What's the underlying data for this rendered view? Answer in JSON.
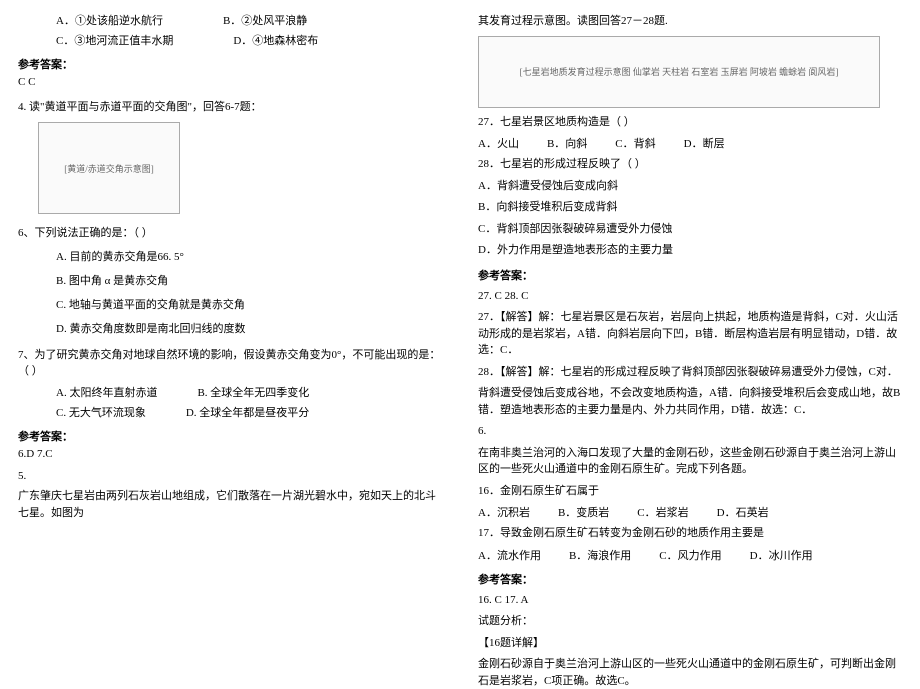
{
  "left": {
    "opts1": {
      "a": "A．①处该船逆水航行",
      "b": "B．②处风平浪静"
    },
    "opts2": {
      "c": "C．③地河流正值丰水期",
      "d": "D．④地森林密布"
    },
    "ans_head": "参考答案：",
    "ans_val": "C  C",
    "q4": "4. 读\"黄道平面与赤道平面的交角图\"，回答6-7题：",
    "img1_label": "[黄道/赤道交角示意图]",
    "q6": "6、下列说法正确的是：（    ）",
    "q6a": "A. 目前的黄赤交角是66. 5°",
    "q6b": "B. 图中角 α 是黄赤交角",
    "q6c": "C. 地轴与黄道平面的交角就是黄赤交角",
    "q6d": "D. 黄赤交角度数即是南北回归线的度数",
    "q7": "7、为了研究黄赤交角对地球自然环境的影响，假设黄赤交角变为0°，不可能出现的是：（    ）",
    "q7ab": {
      "a": "A. 太阳终年直射赤道",
      "b": "B. 全球全年无四季变化"
    },
    "q7cd": {
      "c": "C. 无大气环流现象",
      "d": "D. 全球全年都是昼夜平分"
    },
    "ans2_head": "参考答案：",
    "ans2_val": "6.D   7.C",
    "q5": "5.",
    "q5text": "广东肇庆七星岩由两列石灰岩山地组成，它们散落在一片湖光碧水中，宛如天上的北斗七星。如图为"
  },
  "right": {
    "toptext": "其发育过程示意图。读图回答27－28题.",
    "img2_label": "[七星岩地质发育过程示意图  仙掌岩 天柱岩 石室岩 玉屏岩 阿坡岩 蟾蜍岩 阆风岩]",
    "q27": "27．七星岩景区地质构造是（    ）",
    "q27opts": {
      "a": "A．火山",
      "b": "B．向斜",
      "c": "C．背斜",
      "d": "D．断层"
    },
    "q28": "28．七星岩的形成过程反映了（    ）",
    "q28a": "A．背斜遭受侵蚀后变成向斜",
    "q28b": "B．向斜接受堆积后变成背斜",
    "q28c": "C．背斜顶部因张裂破碎易遭受外力侵蚀",
    "q28d": "D．外力作用是塑造地表形态的主要力量",
    "ans_head": "参考答案：",
    "ans_val": "27. C    28. C",
    "exp27": "27．【解答】解：七星岩景区是石灰岩，岩层向上拱起，地质构造是背斜，C对．火山活动形成的是岩浆岩，A错．向斜岩层向下凹，B错．断层构造岩层有明显错动，D错．故选：C．",
    "exp28": "28．【解答】解：七星岩的形成过程反映了背斜顶部因张裂破碎易遭受外力侵蚀，C对．",
    "exp28b": "背斜遭受侵蚀后变成谷地，不会改变地质构造，A错．向斜接受堆积后会变成山地，故B错．塑造地表形态的主要力量是内、外力共同作用，D错．故选：C．",
    "q6n": "6.",
    "q6text": "在南非奥兰治河的入海口发现了大量的金刚石砂，这些金刚石砂源自于奥兰治河上游山区的一些死火山通道中的金刚石原生矿。完成下列各题。",
    "q16": "16．金刚石原生矿石属于",
    "q16opts": {
      "a": "A．沉积岩",
      "b": "B．变质岩",
      "c": "C．岩浆岩",
      "d": "D．石英岩"
    },
    "q17": "17．导致金刚石原生矿石转变为金刚石砂的地质作用主要是",
    "q17opts": {
      "a": "A．流水作用",
      "b": "B．海浪作用",
      "c": "C．风力作用",
      "d": "D．冰川作用"
    },
    "ans2_head": "参考答案：",
    "ans2_val": "16. C    17. A",
    "analysis": "试题分析：",
    "d16": "【16题详解】",
    "d16text": "金刚石砂源自于奥兰治河上游山区的一些死火山通道中的金刚石原生矿，可判断出金刚石是岩浆岩，C项正确。故选C。"
  }
}
